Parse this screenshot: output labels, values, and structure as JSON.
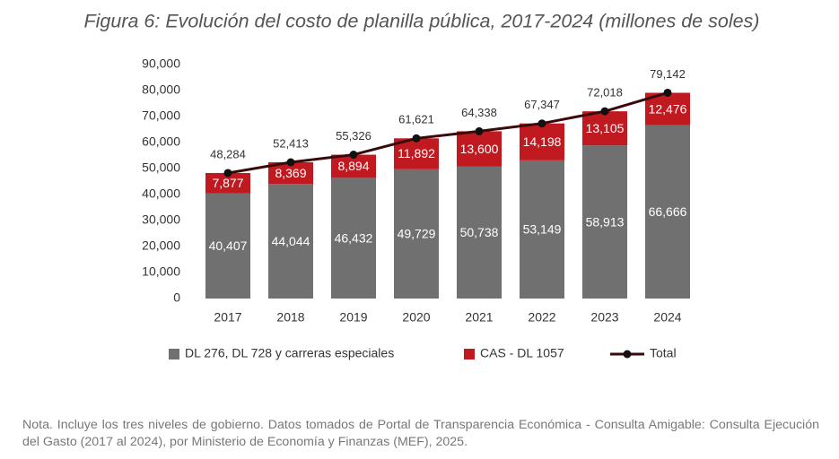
{
  "chart_data": {
    "type": "bar",
    "stacked": true,
    "title": "Figura 6: Evolución del costo de planilla pública, 2017-2024 (millones de soles)",
    "categories": [
      "2017",
      "2018",
      "2019",
      "2020",
      "2021",
      "2022",
      "2023",
      "2024"
    ],
    "series": [
      {
        "name": "DL 276, DL 728 y carreras especiales",
        "type": "bar",
        "color": "#707070",
        "values": [
          40407,
          44044,
          46432,
          49729,
          50738,
          53149,
          58913,
          66666
        ],
        "value_labels": [
          "40,407",
          "44,044",
          "46,432",
          "49,729",
          "50,738",
          "53,149",
          "58,913",
          "66,666"
        ]
      },
      {
        "name": "CAS - DL 1057",
        "type": "bar",
        "color": "#c0191f",
        "values": [
          7877,
          8369,
          8894,
          11892,
          13600,
          14198,
          13105,
          12476
        ],
        "value_labels": [
          "7,877",
          "8,369",
          "8,894",
          "11,892",
          "13,600",
          "14,198",
          "13,105",
          "12,476"
        ]
      },
      {
        "name": "Total",
        "type": "line",
        "color": "#3a0a0a",
        "values": [
          48284,
          52413,
          55326,
          61621,
          64338,
          67347,
          72018,
          79142
        ],
        "value_labels": [
          "48,284",
          "52,413",
          "55,326",
          "61,621",
          "64,338",
          "67,347",
          "72,018",
          "79,142"
        ]
      }
    ],
    "ylim": [
      0,
      90000
    ],
    "yticks": [
      0,
      {
        "value": 10000,
        "label": "10,000"
      },
      {
        "value": 20000,
        "label": "20,000"
      },
      {
        "value": 30000,
        "label": "30,000"
      },
      {
        "value": 40000,
        "label": "40,000"
      },
      {
        "value": 50000,
        "label": "50,000"
      },
      {
        "value": 60000,
        "label": "60,000"
      },
      {
        "value": 70000,
        "label": "70,000"
      },
      {
        "value": 80000,
        "label": "80,000"
      },
      {
        "value": 90000,
        "label": "90,000"
      }
    ],
    "grid": false,
    "legend": "bottom",
    "note": "Nota. Incluye los tres niveles de gobierno. Datos tomados de Portal de Transparencia Económica - Consulta Amigable: Consulta Ejecución del Gasto (2017 al 2024), por Ministerio de Economía y Finanzas (MEF), 2025."
  }
}
